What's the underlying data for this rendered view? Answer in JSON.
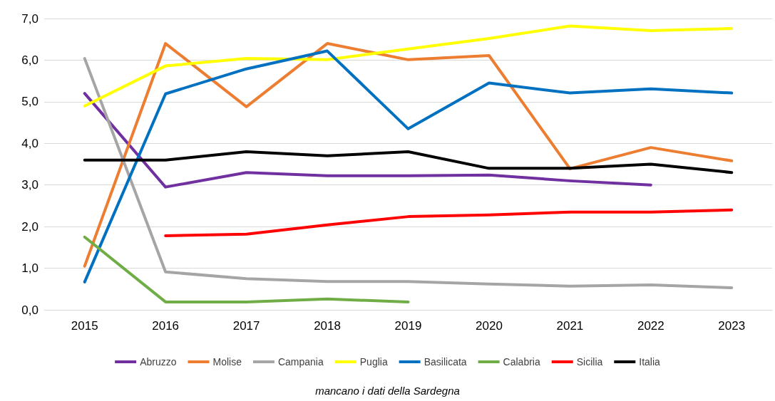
{
  "chart_data": {
    "type": "line",
    "categories": [
      "2015",
      "2016",
      "2017",
      "2018",
      "2019",
      "2020",
      "2021",
      "2022",
      "2023"
    ],
    "series": [
      {
        "name": "Abruzzo",
        "color": "#7030a0",
        "values": [
          5.2,
          2.95,
          3.3,
          3.22,
          3.22,
          3.24,
          3.1,
          3.0,
          null
        ]
      },
      {
        "name": "Molise",
        "color": "#ed7d31",
        "values": [
          1.05,
          6.4,
          4.88,
          6.4,
          6.01,
          6.11,
          3.39,
          3.9,
          3.58
        ]
      },
      {
        "name": "Campania",
        "color": "#a5a5a5",
        "values": [
          6.04,
          0.91,
          0.75,
          0.68,
          0.68,
          0.62,
          0.57,
          0.6,
          0.53
        ]
      },
      {
        "name": "Puglia",
        "color": "#ffff00",
        "values": [
          4.9,
          5.86,
          6.04,
          6.01,
          6.27,
          6.52,
          6.82,
          6.71,
          6.76
        ]
      },
      {
        "name": "Basilicata",
        "color": "#0070c0",
        "values": [
          0.67,
          5.19,
          5.79,
          6.22,
          4.35,
          5.45,
          5.21,
          5.31,
          5.21
        ]
      },
      {
        "name": "Calabria",
        "color": "#70ad47",
        "values": [
          1.75,
          0.19,
          0.19,
          0.26,
          0.19,
          null,
          null,
          null,
          null
        ]
      },
      {
        "name": "Sicilia",
        "color": "#ff0000",
        "values": [
          null,
          1.78,
          1.82,
          2.04,
          2.24,
          2.28,
          2.35,
          2.35,
          2.4
        ]
      },
      {
        "name": "Italia",
        "color": "#000000",
        "values": [
          3.6,
          3.6,
          3.8,
          3.7,
          3.8,
          3.4,
          3.4,
          3.5,
          3.3
        ]
      }
    ],
    "ylim": [
      0,
      7
    ],
    "yticks": [
      {
        "value": 0,
        "label": "0,0"
      },
      {
        "value": 1,
        "label": "1,0"
      },
      {
        "value": 2,
        "label": "2,0"
      },
      {
        "value": 3,
        "label": "3,0"
      },
      {
        "value": 4,
        "label": "4,0"
      },
      {
        "value": 5,
        "label": "5,0"
      },
      {
        "value": 6,
        "label": "6,0"
      },
      {
        "value": 7,
        "label": "7,0"
      }
    ],
    "grid": "y",
    "legend": "bottom",
    "marker": "none",
    "line_style": "solid",
    "annotations": [
      "mancano i dati della Sardegna"
    ]
  }
}
